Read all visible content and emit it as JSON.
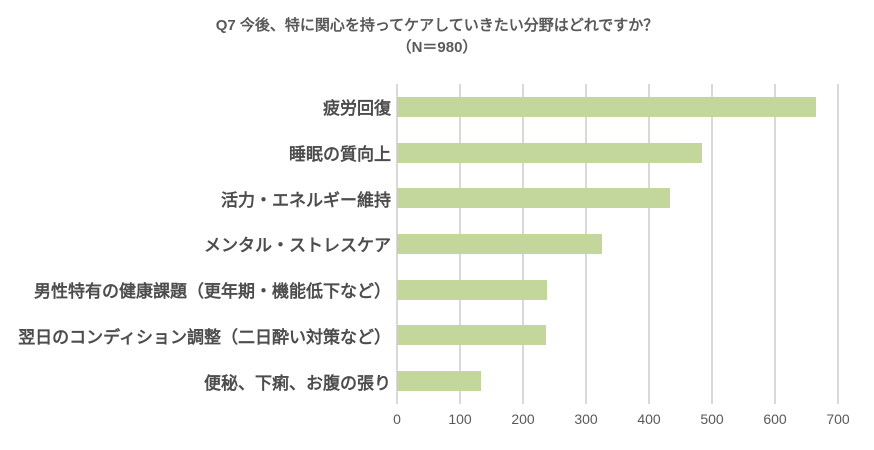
{
  "title": {
    "line1": "Q7 今後、特に関心を持ってケアしていきたい分野はどれですか？",
    "line2": "（N＝980）"
  },
  "chart_data": {
    "type": "bar",
    "orientation": "horizontal",
    "title": "Q7 今後、特に関心を持ってケアしていきたい分野はどれですか？（N＝980）",
    "n_label": "（N＝980）",
    "n": 980,
    "categories": [
      "疲労回復",
      "睡眠の質向上",
      "活力・エネルギー維持",
      "メンタル・ストレスケア",
      "男性特有の健康課題（更年期・機能低下など）",
      "翌日のコンディション調整（二日酔い対策など）",
      "便秘、下痢、お腹の張り"
    ],
    "values": [
      665,
      484,
      433,
      325,
      238,
      236,
      134
    ],
    "xlabel": "",
    "ylabel": "",
    "xlim": [
      0,
      700
    ],
    "xticks": [
      0,
      100,
      200,
      300,
      400,
      500,
      600,
      700
    ],
    "grid": "vertical-only",
    "legend": "none",
    "bar_color": "#c3d69b",
    "gridline_color": "#d9d9d9",
    "label_color": "#4d4d4d",
    "axis_text_color": "#595959",
    "title_color": "#595959"
  }
}
